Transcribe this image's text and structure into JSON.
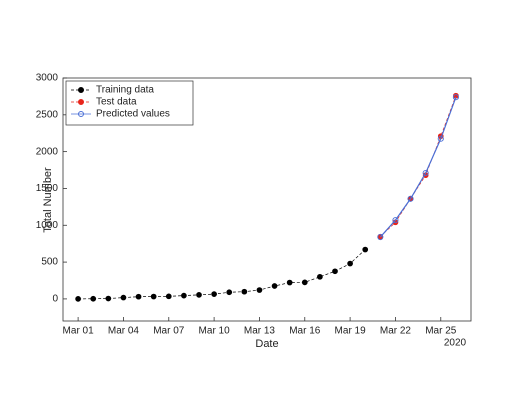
{
  "chart_data": {
    "type": "line",
    "xlabel": "Date",
    "ylabel": "Total Number",
    "x_year_label": "2020",
    "xlim": [
      "2020-02-29",
      "2020-03-27"
    ],
    "xticks": [
      {
        "value": "2020-03-01",
        "label": "Mar 01"
      },
      {
        "value": "2020-03-04",
        "label": "Mar 04"
      },
      {
        "value": "2020-03-07",
        "label": "Mar 07"
      },
      {
        "value": "2020-03-10",
        "label": "Mar 10"
      },
      {
        "value": "2020-03-13",
        "label": "Mar 13"
      },
      {
        "value": "2020-03-16",
        "label": "Mar 16"
      },
      {
        "value": "2020-03-19",
        "label": "Mar 19"
      },
      {
        "value": "2020-03-22",
        "label": "Mar 22"
      },
      {
        "value": "2020-03-25",
        "label": "Mar 25"
      }
    ],
    "ylim": [
      -300,
      3000
    ],
    "yticks": [
      0,
      500,
      1000,
      1500,
      2000,
      2500,
      3000
    ],
    "legend": "upper-left",
    "series": [
      {
        "name": "Training data",
        "color": "#000000",
        "marker": "filled",
        "line": "dashed",
        "x": [
          "2020-03-01",
          "2020-03-02",
          "2020-03-03",
          "2020-03-04",
          "2020-03-05",
          "2020-03-06",
          "2020-03-07",
          "2020-03-08",
          "2020-03-09",
          "2020-03-10",
          "2020-03-11",
          "2020-03-12",
          "2020-03-13",
          "2020-03-14",
          "2020-03-15",
          "2020-03-16",
          "2020-03-17",
          "2020-03-18",
          "2020-03-19",
          "2020-03-20"
        ],
        "values": [
          0,
          2,
          5,
          18,
          30,
          32,
          35,
          45,
          55,
          65,
          90,
          98,
          120,
          175,
          222,
          225,
          300,
          375,
          480,
          670
        ]
      },
      {
        "name": "Test data",
        "color": "#e8251b",
        "marker": "filled",
        "line": "dashed",
        "x": [
          "2020-03-21",
          "2020-03-22",
          "2020-03-23",
          "2020-03-24",
          "2020-03-25",
          "2020-03-26"
        ],
        "values": [
          845,
          1040,
          1360,
          1680,
          2210,
          2760
        ]
      },
      {
        "name": "Predicted values",
        "color": "#4a6fd6",
        "marker": "open",
        "line": "solid",
        "x": [
          "2020-03-21",
          "2020-03-22",
          "2020-03-23",
          "2020-03-24",
          "2020-03-25",
          "2020-03-26"
        ],
        "values": [
          840,
          1070,
          1360,
          1710,
          2175,
          2740
        ]
      }
    ]
  }
}
